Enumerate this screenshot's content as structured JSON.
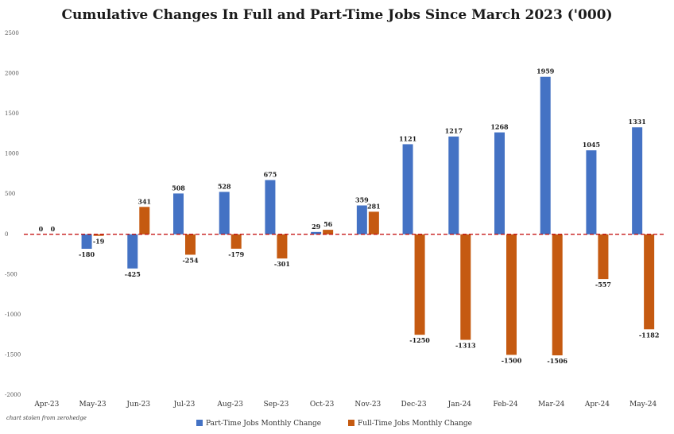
{
  "chart_data": {
    "type": "bar",
    "title": "Cumulative Changes In Full and Part-Time Jobs Since March 2023 ('000)",
    "categories": [
      "Apr-23",
      "May-23",
      "Jun-23",
      "Jul-23",
      "Aug-23",
      "Sep-23",
      "Oct-23",
      "Nov-23",
      "Dec-23",
      "Jan-24",
      "Feb-24",
      "Mar-24",
      "Apr-24",
      "May-24"
    ],
    "series": [
      {
        "name": "Part-Time Jobs Monthly Change",
        "color": "#4472c4",
        "values": [
          0,
          -180,
          -425,
          508,
          528,
          675,
          29,
          359,
          1121,
          1217,
          1268,
          1959,
          1045,
          1331
        ]
      },
      {
        "name": "Full-Time Jobs Monthly Change",
        "color": "#c55a11",
        "values": [
          0,
          -19,
          341,
          -254,
          -179,
          -301,
          56,
          281,
          -1250,
          -1313,
          -1500,
          -1506,
          -557,
          -1182
        ]
      }
    ],
    "ylim": [
      -2000,
      2500
    ],
    "yticks": [
      -2000,
      -1500,
      -1000,
      -500,
      0,
      500,
      1000,
      1500,
      2000,
      2500
    ],
    "grid": false,
    "legend_position": "bottom-center",
    "zero_line": {
      "style": "dashed",
      "color": "#c00000"
    },
    "credit": "chart stolen from zerohedge"
  }
}
